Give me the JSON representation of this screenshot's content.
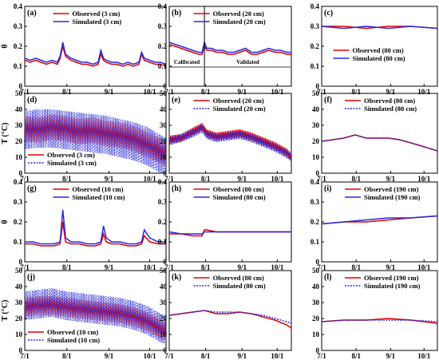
{
  "figure": {
    "x_ticks": [
      "7/1",
      "8/1",
      "9/1",
      "10/1"
    ],
    "colors": {
      "observed": "#e00000",
      "simulated": "#2828e0"
    }
  },
  "chart_data": [
    {
      "id": "a",
      "panel_label": "(a)",
      "type": "line",
      "ylabel": "θ",
      "ylim": [
        0,
        0.4
      ],
      "yticks": [
        0,
        0.1,
        0.2,
        0.3,
        0.4
      ],
      "sim_style": "solid",
      "legend_position": "top-right",
      "series": [
        {
          "name": "Observed (3 cm)",
          "role": "obs",
          "x": [
            0,
            4,
            8,
            12,
            16,
            20,
            24,
            26,
            28,
            30,
            34,
            38,
            42,
            46,
            50,
            54,
            56,
            58,
            60,
            64,
            68,
            72,
            76,
            80,
            84,
            86,
            88,
            92,
            96,
            100,
            104
          ],
          "y": [
            0.13,
            0.12,
            0.13,
            0.12,
            0.11,
            0.12,
            0.11,
            0.14,
            0.2,
            0.15,
            0.13,
            0.12,
            0.11,
            0.11,
            0.1,
            0.11,
            0.16,
            0.13,
            0.12,
            0.11,
            0.11,
            0.1,
            0.11,
            0.1,
            0.11,
            0.16,
            0.13,
            0.12,
            0.11,
            0.11,
            0.1
          ]
        },
        {
          "name": "Simulated (3 cm)",
          "role": "sim",
          "x": [
            0,
            4,
            8,
            12,
            16,
            20,
            24,
            26,
            28,
            30,
            34,
            38,
            42,
            46,
            50,
            54,
            56,
            58,
            60,
            64,
            68,
            72,
            76,
            80,
            84,
            86,
            88,
            92,
            96,
            100,
            104
          ],
          "y": [
            0.14,
            0.13,
            0.14,
            0.13,
            0.12,
            0.13,
            0.12,
            0.15,
            0.22,
            0.16,
            0.14,
            0.13,
            0.12,
            0.12,
            0.11,
            0.12,
            0.18,
            0.14,
            0.13,
            0.12,
            0.12,
            0.11,
            0.12,
            0.11,
            0.12,
            0.17,
            0.14,
            0.13,
            0.12,
            0.12,
            0.11
          ]
        }
      ]
    },
    {
      "id": "b",
      "panel_label": "(b)",
      "type": "line",
      "ylabel": "",
      "ylim": [
        0,
        0.4
      ],
      "yticks": [
        0,
        0.1,
        0.2,
        0.3,
        0.4
      ],
      "sim_style": "solid",
      "legend_position": "top-right",
      "annotations": {
        "calibrated": "Calibrated",
        "validated": "Validated",
        "split_x": 30
      },
      "series": [
        {
          "name": "Observed (20 cm)",
          "role": "obs",
          "x": [
            0,
            5,
            10,
            15,
            20,
            25,
            28,
            30,
            32,
            36,
            40,
            45,
            50,
            55,
            60,
            65,
            70,
            75,
            80,
            85,
            90,
            95,
            100,
            104
          ],
          "y": [
            0.21,
            0.2,
            0.19,
            0.18,
            0.17,
            0.16,
            0.16,
            0.2,
            0.18,
            0.18,
            0.17,
            0.17,
            0.16,
            0.16,
            0.17,
            0.18,
            0.16,
            0.16,
            0.17,
            0.18,
            0.17,
            0.17,
            0.16,
            0.16
          ]
        },
        {
          "name": "Simulated (20 cm)",
          "role": "sim",
          "x": [
            0,
            5,
            10,
            15,
            20,
            25,
            28,
            30,
            32,
            36,
            40,
            45,
            50,
            55,
            60,
            65,
            70,
            75,
            80,
            85,
            90,
            95,
            100,
            104
          ],
          "y": [
            0.22,
            0.21,
            0.2,
            0.19,
            0.18,
            0.17,
            0.17,
            0.22,
            0.19,
            0.19,
            0.18,
            0.18,
            0.17,
            0.17,
            0.18,
            0.19,
            0.17,
            0.17,
            0.18,
            0.19,
            0.18,
            0.18,
            0.17,
            0.17
          ]
        }
      ]
    },
    {
      "id": "c",
      "panel_label": "(c)",
      "type": "line",
      "ylabel": "",
      "ylim": [
        0,
        0.4
      ],
      "yticks": [
        0,
        0.1,
        0.2,
        0.3,
        0.4
      ],
      "sim_style": "solid",
      "legend_position": "center-right",
      "series": [
        {
          "name": "Observed (80 cm)",
          "role": "obs",
          "x": [
            0,
            20,
            40,
            60,
            80,
            104
          ],
          "y": [
            0.3,
            0.3,
            0.29,
            0.3,
            0.3,
            0.29
          ]
        },
        {
          "name": "Simulated (80 cm)",
          "role": "sim",
          "x": [
            0,
            20,
            40,
            60,
            80,
            104
          ],
          "y": [
            0.3,
            0.29,
            0.3,
            0.29,
            0.3,
            0.29
          ]
        }
      ]
    },
    {
      "id": "d",
      "panel_label": "(d)",
      "type": "line",
      "ylabel": "T (°C)",
      "ylim": [
        0,
        50
      ],
      "yticks": [
        0,
        10,
        20,
        30,
        40,
        50
      ],
      "sim_style": "dotted",
      "legend_position": "bottom-left",
      "wave": {
        "obs": [
          8,
          0.55
        ],
        "sim": [
          12,
          0.55
        ]
      },
      "series": [
        {
          "name": "Observed (3 cm)",
          "role": "obs",
          "x": [
            0,
            10,
            20,
            30,
            40,
            50,
            60,
            70,
            80,
            90,
            100,
            104
          ],
          "y": [
            28,
            27,
            29,
            28,
            26,
            27,
            25,
            24,
            22,
            18,
            14,
            12
          ]
        },
        {
          "name": "Simulated (3 cm)",
          "role": "sim",
          "x": [
            0,
            10,
            20,
            30,
            40,
            50,
            60,
            70,
            80,
            90,
            100,
            104
          ],
          "y": [
            27,
            28,
            28,
            27,
            26,
            25,
            24,
            22,
            20,
            17,
            12,
            10
          ]
        }
      ]
    },
    {
      "id": "e",
      "panel_label": "(e)",
      "type": "line",
      "ylabel": "",
      "ylim": [
        0,
        50
      ],
      "yticks": [
        0,
        10,
        20,
        30,
        40,
        50
      ],
      "sim_style": "dotted",
      "legend_position": "top-right",
      "wave": {
        "obs": [
          2.5,
          0.5
        ],
        "sim": [
          2.5,
          0.5
        ]
      },
      "series": [
        {
          "name": "Observed (20 cm)",
          "role": "obs",
          "x": [
            0,
            10,
            20,
            28,
            32,
            40,
            50,
            60,
            70,
            80,
            90,
            100,
            104
          ],
          "y": [
            21,
            22,
            26,
            29,
            25,
            23,
            24,
            25,
            23,
            20,
            17,
            13,
            10
          ]
        },
        {
          "name": "Simulated (20 cm)",
          "role": "sim",
          "x": [
            0,
            10,
            20,
            28,
            32,
            40,
            50,
            60,
            70,
            80,
            90,
            100,
            104
          ],
          "y": [
            20,
            22,
            25,
            28,
            24,
            22,
            23,
            24,
            22,
            19,
            16,
            12,
            10
          ]
        }
      ]
    },
    {
      "id": "f",
      "panel_label": "(f)",
      "type": "line",
      "ylabel": "",
      "ylim": [
        0,
        50
      ],
      "yticks": [
        0,
        10,
        20,
        30,
        40,
        50
      ],
      "sim_style": "dotted",
      "legend_position": "top-right",
      "series": [
        {
          "name": "Observed (80 cm)",
          "role": "obs",
          "x": [
            0,
            10,
            20,
            30,
            40,
            50,
            60,
            70,
            80,
            90,
            104
          ],
          "y": [
            20,
            21,
            22,
            24,
            22,
            22,
            22,
            21,
            19,
            17,
            14
          ]
        },
        {
          "name": "Simulated (80 cm)",
          "role": "sim",
          "x": [
            0,
            10,
            20,
            30,
            40,
            50,
            60,
            70,
            80,
            90,
            104
          ],
          "y": [
            20,
            21,
            22,
            24,
            22,
            22,
            22,
            21,
            19,
            17,
            14
          ]
        }
      ]
    },
    {
      "id": "g",
      "panel_label": "(g)",
      "type": "line",
      "ylabel": "θ",
      "ylim": [
        0,
        0.4
      ],
      "yticks": [
        0,
        0.1,
        0.2,
        0.3,
        0.4
      ],
      "sim_style": "solid",
      "legend_position": "top-right",
      "series": [
        {
          "name": "Observed (10 cm)",
          "role": "obs",
          "x": [
            0,
            6,
            12,
            18,
            22,
            26,
            28,
            30,
            34,
            40,
            46,
            52,
            56,
            58,
            60,
            64,
            70,
            76,
            82,
            86,
            88,
            92,
            98,
            104
          ],
          "y": [
            0.09,
            0.09,
            0.08,
            0.08,
            0.08,
            0.09,
            0.2,
            0.1,
            0.09,
            0.09,
            0.08,
            0.08,
            0.09,
            0.14,
            0.1,
            0.09,
            0.09,
            0.08,
            0.08,
            0.09,
            0.13,
            0.1,
            0.09,
            0.09
          ]
        },
        {
          "name": "Simulated (10 cm)",
          "role": "sim",
          "x": [
            0,
            6,
            12,
            18,
            22,
            26,
            28,
            30,
            34,
            40,
            46,
            52,
            56,
            58,
            60,
            64,
            70,
            76,
            82,
            86,
            88,
            92,
            98,
            104
          ],
          "y": [
            0.1,
            0.1,
            0.09,
            0.09,
            0.09,
            0.1,
            0.26,
            0.12,
            0.1,
            0.1,
            0.09,
            0.09,
            0.1,
            0.18,
            0.12,
            0.1,
            0.1,
            0.09,
            0.09,
            0.1,
            0.16,
            0.12,
            0.1,
            0.1
          ]
        }
      ]
    },
    {
      "id": "h",
      "panel_label": "(h)",
      "type": "line",
      "ylabel": "",
      "ylim": [
        0,
        0.4
      ],
      "yticks": [
        0,
        0.1,
        0.2,
        0.3,
        0.4
      ],
      "sim_style": "solid",
      "legend_position": "top-right",
      "series": [
        {
          "name": "Observed (80 cm)",
          "role": "obs",
          "x": [
            0,
            10,
            20,
            28,
            30,
            32,
            40,
            50,
            60,
            70,
            80,
            90,
            104
          ],
          "y": [
            0.14,
            0.14,
            0.13,
            0.13,
            0.16,
            0.16,
            0.15,
            0.15,
            0.15,
            0.15,
            0.15,
            0.15,
            0.15
          ]
        },
        {
          "name": "Simulated (80 cm)",
          "role": "sim",
          "x": [
            0,
            10,
            20,
            28,
            30,
            32,
            40,
            50,
            60,
            70,
            80,
            90,
            104
          ],
          "y": [
            0.15,
            0.14,
            0.14,
            0.14,
            0.15,
            0.15,
            0.15,
            0.15,
            0.15,
            0.15,
            0.15,
            0.15,
            0.15
          ]
        }
      ]
    },
    {
      "id": "i",
      "panel_label": "(i)",
      "type": "line",
      "ylabel": "",
      "ylim": [
        0,
        0.4
      ],
      "yticks": [
        0,
        0.1,
        0.2,
        0.3,
        0.4
      ],
      "sim_style": "solid",
      "legend_position": "top-right",
      "series": [
        {
          "name": "Observed (190 cm)",
          "role": "obs",
          "x": [
            0,
            20,
            40,
            60,
            80,
            104
          ],
          "y": [
            0.19,
            0.2,
            0.2,
            0.21,
            0.22,
            0.23
          ]
        },
        {
          "name": "Simulated (190 cm)",
          "role": "sim",
          "x": [
            0,
            20,
            40,
            60,
            80,
            104
          ],
          "y": [
            0.19,
            0.2,
            0.21,
            0.22,
            0.22,
            0.23
          ]
        }
      ]
    },
    {
      "id": "j",
      "panel_label": "(j)",
      "type": "line",
      "ylabel": "T (°C)",
      "ylim": [
        0,
        50
      ],
      "yticks": [
        0,
        10,
        20,
        30,
        40,
        50
      ],
      "sim_style": "dotted",
      "legend_position": "bottom-left",
      "wave": {
        "obs": [
          6,
          0.55
        ],
        "sim": [
          9,
          0.55
        ]
      },
      "series": [
        {
          "name": "Observed (10 cm)",
          "role": "obs",
          "x": [
            0,
            10,
            20,
            30,
            40,
            50,
            60,
            70,
            80,
            90,
            100,
            104
          ],
          "y": [
            27,
            28,
            28,
            27,
            26,
            25,
            24,
            23,
            21,
            18,
            13,
            12
          ]
        },
        {
          "name": "Simulated (10 cm)",
          "role": "sim",
          "x": [
            0,
            10,
            20,
            30,
            40,
            50,
            60,
            70,
            80,
            90,
            100,
            104
          ],
          "y": [
            28,
            29,
            30,
            28,
            27,
            26,
            25,
            24,
            22,
            19,
            14,
            13
          ]
        }
      ]
    },
    {
      "id": "k",
      "panel_label": "(k)",
      "type": "line",
      "ylabel": "",
      "ylim": [
        0,
        50
      ],
      "yticks": [
        0,
        10,
        20,
        30,
        40,
        50
      ],
      "sim_style": "dotted",
      "legend_position": "top-right",
      "series": [
        {
          "name": "Observed (80 cm)",
          "role": "obs",
          "x": [
            0,
            10,
            20,
            30,
            40,
            50,
            60,
            70,
            80,
            90,
            100,
            104
          ],
          "y": [
            22,
            23,
            24,
            25,
            23,
            23,
            24,
            23,
            21,
            19,
            16,
            14
          ]
        },
        {
          "name": "Simulated (80 cm)",
          "role": "sim",
          "x": [
            0,
            10,
            20,
            30,
            40,
            50,
            60,
            70,
            80,
            90,
            100,
            104
          ],
          "y": [
            22,
            23,
            24,
            25,
            24,
            24,
            24,
            23,
            22,
            20,
            18,
            17
          ]
        }
      ]
    },
    {
      "id": "l",
      "panel_label": "(l)",
      "type": "line",
      "ylabel": "",
      "ylim": [
        0,
        50
      ],
      "yticks": [
        0,
        10,
        20,
        30,
        40,
        50
      ],
      "sim_style": "dotted",
      "legend_position": "top-right",
      "series": [
        {
          "name": "Observed (190 cm)",
          "role": "obs",
          "x": [
            0,
            20,
            40,
            60,
            80,
            104
          ],
          "y": [
            18,
            19,
            19,
            20,
            19,
            17
          ]
        },
        {
          "name": "Simulated (190 cm)",
          "role": "sim",
          "x": [
            0,
            20,
            40,
            60,
            80,
            104
          ],
          "y": [
            18,
            19,
            19,
            19,
            19,
            18
          ]
        }
      ]
    }
  ]
}
